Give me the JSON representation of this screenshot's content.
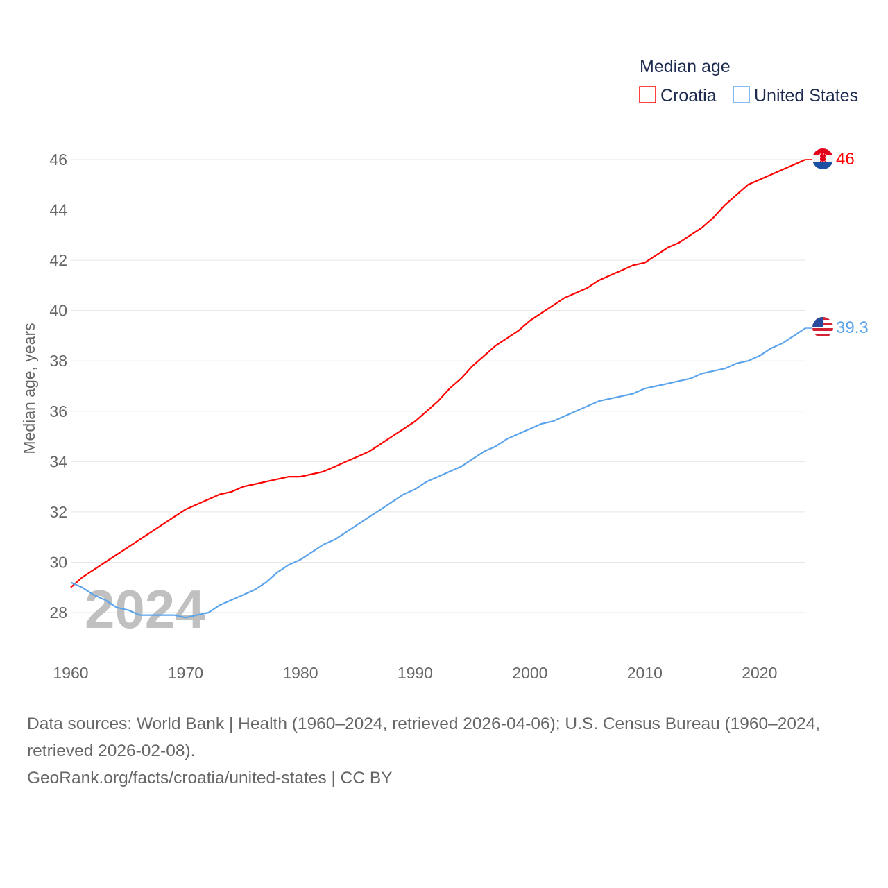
{
  "chart_data": {
    "type": "line",
    "title": "",
    "legend_title": "Median age",
    "legend_placement": "top-right",
    "xlabel": "",
    "ylabel": "Median age, years",
    "xlim": [
      1960,
      2024
    ],
    "ylim": [
      27,
      46.6
    ],
    "grid": true,
    "x_ticks": [
      "1960",
      "1970",
      "1980",
      "1990",
      "2000",
      "2010",
      "2020"
    ],
    "y_ticks": [
      "28",
      "30",
      "32",
      "34",
      "36",
      "38",
      "40",
      "42",
      "44",
      "46"
    ],
    "watermark_year": "2024",
    "x": [
      1960,
      1961,
      1962,
      1963,
      1964,
      1965,
      1966,
      1967,
      1968,
      1969,
      1970,
      1971,
      1972,
      1973,
      1974,
      1975,
      1976,
      1977,
      1978,
      1979,
      1980,
      1981,
      1982,
      1983,
      1984,
      1985,
      1986,
      1987,
      1988,
      1989,
      1990,
      1991,
      1992,
      1993,
      1994,
      1995,
      1996,
      1997,
      1998,
      1999,
      2000,
      2001,
      2002,
      2003,
      2004,
      2005,
      2006,
      2007,
      2008,
      2009,
      2010,
      2011,
      2012,
      2013,
      2014,
      2015,
      2016,
      2017,
      2018,
      2019,
      2020,
      2021,
      2022,
      2023,
      2024
    ],
    "series": [
      {
        "name": "Croatia",
        "color": "#ff0000",
        "end_label": "46",
        "values": [
          29.0,
          29.4,
          29.7,
          30.0,
          30.3,
          30.6,
          30.9,
          31.2,
          31.5,
          31.8,
          32.1,
          32.3,
          32.5,
          32.7,
          32.8,
          33.0,
          33.1,
          33.2,
          33.3,
          33.4,
          33.4,
          33.5,
          33.6,
          33.8,
          34.0,
          34.2,
          34.4,
          34.7,
          35.0,
          35.3,
          35.6,
          36.0,
          36.4,
          36.9,
          37.3,
          37.8,
          38.2,
          38.6,
          38.9,
          39.2,
          39.6,
          39.9,
          40.2,
          40.5,
          40.7,
          40.9,
          41.2,
          41.4,
          41.6,
          41.8,
          41.9,
          42.2,
          42.5,
          42.7,
          43.0,
          43.3,
          43.7,
          44.2,
          44.6,
          45.0,
          45.2,
          45.4,
          45.6,
          45.8,
          46.0
        ]
      },
      {
        "name": "United States",
        "color": "#5ba4ec",
        "end_label": "39.3",
        "values": [
          29.2,
          29.0,
          28.7,
          28.5,
          28.2,
          28.1,
          27.9,
          27.9,
          27.9,
          27.9,
          27.8,
          27.9,
          28.0,
          28.3,
          28.5,
          28.7,
          28.9,
          29.2,
          29.6,
          29.9,
          30.1,
          30.4,
          30.7,
          30.9,
          31.2,
          31.5,
          31.8,
          32.1,
          32.4,
          32.7,
          32.9,
          33.2,
          33.4,
          33.6,
          33.8,
          34.1,
          34.4,
          34.6,
          34.9,
          35.1,
          35.3,
          35.5,
          35.6,
          35.8,
          36.0,
          36.2,
          36.4,
          36.5,
          36.6,
          36.7,
          36.9,
          37.0,
          37.1,
          37.2,
          37.3,
          37.5,
          37.6,
          37.7,
          37.9,
          38.0,
          38.2,
          38.5,
          38.7,
          39.0,
          39.3
        ]
      }
    ]
  },
  "footer": {
    "sources": "Data sources: World Bank | Health (1960–2024, retrieved 2026-04-06); U.S. Census Bureau (1960–2024, retrieved 2026-02-08).",
    "link": "GeoRank.org/facts/croatia/united-states | CC BY"
  }
}
